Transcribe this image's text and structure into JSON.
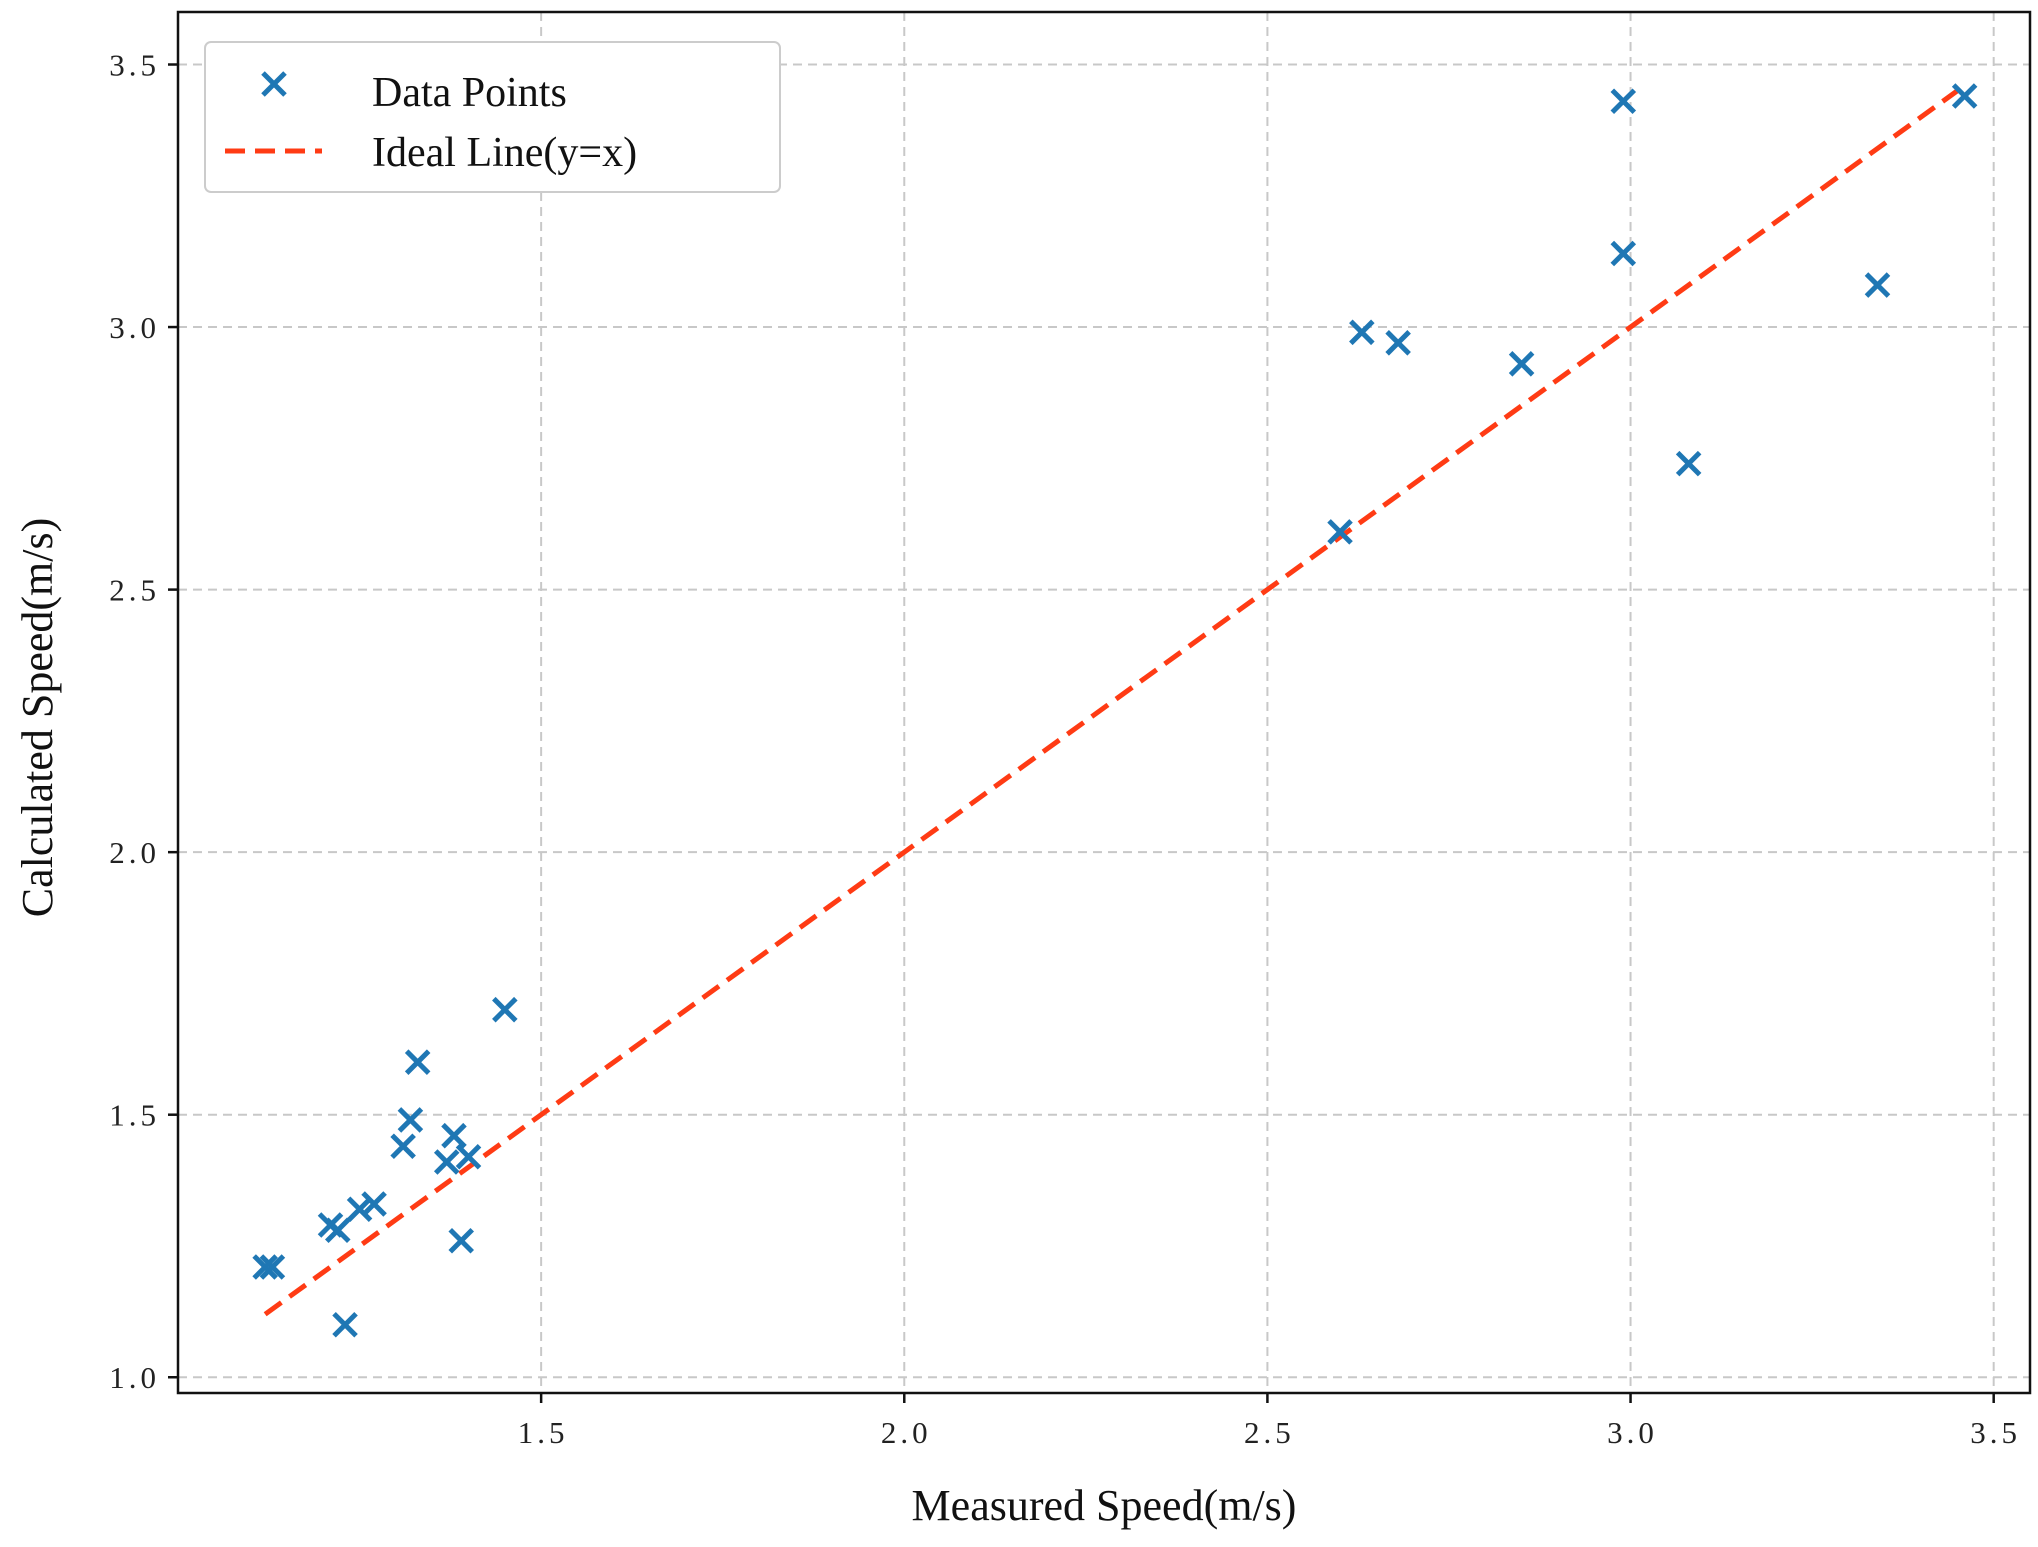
{
  "chart_data": {
    "type": "scatter",
    "xlabel": "Measured Speed(m/s)",
    "ylabel": "Calculated Speed(m/s)",
    "xlim": [
      1.0,
      3.55
    ],
    "ylim": [
      0.97,
      3.6
    ],
    "xticks": [
      1.5,
      2.0,
      2.5,
      3.0,
      3.5
    ],
    "xtick_labels": [
      "1.5",
      "2.0",
      "2.5",
      "3.0",
      "3.5"
    ],
    "yticks": [
      1.0,
      1.5,
      2.0,
      2.5,
      3.0,
      3.5
    ],
    "ytick_labels": [
      "1.0",
      "1.5",
      "2.0",
      "2.5",
      "3.0",
      "3.5"
    ],
    "grid": true,
    "legend_position": "top-left",
    "series": [
      {
        "name": "Data Points",
        "kind": "scatter",
        "marker": "x",
        "color": "#1f77b4",
        "points": [
          [
            1.12,
            1.21
          ],
          [
            1.13,
            1.21
          ],
          [
            1.21,
            1.29
          ],
          [
            1.22,
            1.28
          ],
          [
            1.23,
            1.1
          ],
          [
            1.25,
            1.32
          ],
          [
            1.27,
            1.33
          ],
          [
            1.31,
            1.44
          ],
          [
            1.32,
            1.49
          ],
          [
            1.33,
            1.6
          ],
          [
            1.37,
            1.41
          ],
          [
            1.38,
            1.46
          ],
          [
            1.39,
            1.26
          ],
          [
            1.4,
            1.42
          ],
          [
            1.45,
            1.7
          ],
          [
            2.6,
            2.61
          ],
          [
            2.63,
            2.99
          ],
          [
            2.68,
            2.97
          ],
          [
            2.85,
            2.93
          ],
          [
            2.99,
            3.43
          ],
          [
            2.99,
            3.14
          ],
          [
            3.08,
            2.74
          ],
          [
            3.34,
            3.08
          ],
          [
            3.46,
            3.44
          ]
        ]
      },
      {
        "name": "Ideal Line(y=x)",
        "kind": "line",
        "style": "dashed",
        "color": "#ff3b14",
        "x": [
          1.12,
          3.46
        ],
        "y": [
          1.12,
          3.46
        ]
      }
    ]
  }
}
